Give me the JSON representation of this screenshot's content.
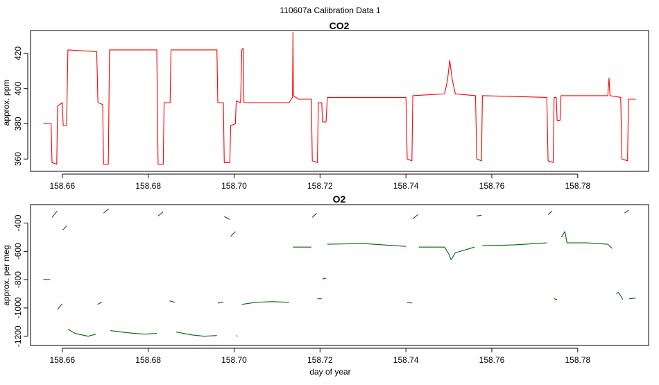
{
  "figure": {
    "title": "110607a   Calibration Data 1"
  },
  "chart_data": [
    {
      "type": "line",
      "title": "CO2",
      "ylabel": "approx. ppm",
      "xlabel": "",
      "xlim": [
        158.6526,
        158.7965
      ],
      "ylim": [
        353,
        433
      ],
      "xticks": [
        158.66,
        158.68,
        158.7,
        158.72,
        158.74,
        158.76,
        158.78
      ],
      "xtick_labels": [
        "158.66",
        "158.68",
        "158.70",
        "158.72",
        "158.74",
        "158.76",
        "158.78"
      ],
      "yticks": [
        360,
        380,
        400,
        420
      ],
      "ytick_labels": [
        "360",
        "380",
        "400",
        "420"
      ],
      "grid": false,
      "series": [
        {
          "color": "#ff0000",
          "segments": [
            [
              [
                158.6556,
                380
              ],
              [
                158.6574,
                380
              ],
              [
                158.6576,
                358
              ],
              [
                158.6587,
                357
              ],
              [
                158.6589,
                390
              ],
              [
                158.66,
                392
              ],
              [
                158.6602,
                379
              ],
              [
                158.661,
                379
              ],
              [
                158.6613,
                422
              ],
              [
                158.668,
                421
              ],
              [
                158.6683,
                392
              ],
              [
                158.6694,
                391
              ],
              [
                158.6696,
                357
              ],
              [
                158.6707,
                357
              ],
              [
                158.671,
                422
              ],
              [
                158.682,
                422
              ],
              [
                158.6823,
                357
              ],
              [
                158.6835,
                357
              ],
              [
                158.6837,
                392
              ],
              [
                158.6851,
                392
              ],
              [
                158.6853,
                422
              ],
              [
                158.696,
                422
              ],
              [
                158.6962,
                392
              ],
              [
                158.6975,
                392
              ],
              [
                158.6977,
                358
              ],
              [
                158.699,
                358
              ],
              [
                158.6992,
                379
              ],
              [
                158.7003,
                380
              ],
              [
                158.7005,
                393
              ],
              [
                158.7015,
                392
              ],
              [
                158.7018,
                422
              ],
              [
                158.7021,
                423
              ],
              [
                158.7023,
                392
              ],
              [
                158.7128,
                392
              ],
              [
                158.7136,
                395
              ],
              [
                158.7137,
                432
              ],
              [
                158.7138,
                396
              ],
              [
                158.715,
                394
              ],
              [
                158.718,
                394
              ],
              [
                158.7182,
                359
              ],
              [
                158.7194,
                358
              ],
              [
                158.7196,
                392
              ],
              [
                158.7204,
                392
              ],
              [
                158.7206,
                381
              ],
              [
                158.7214,
                381
              ],
              [
                158.7217,
                395
              ],
              [
                158.74,
                395
              ],
              [
                158.7403,
                360
              ],
              [
                158.7414,
                359
              ],
              [
                158.7416,
                396
              ],
              [
                158.749,
                397
              ],
              [
                158.7497,
                405
              ],
              [
                158.7502,
                416
              ],
              [
                158.7508,
                405
              ],
              [
                158.7515,
                397
              ],
              [
                158.7562,
                396
              ],
              [
                158.7565,
                360
              ],
              [
                158.7576,
                359
              ],
              [
                158.7578,
                396
              ],
              [
                158.7728,
                395
              ],
              [
                158.7731,
                359
              ],
              [
                158.7743,
                358
              ],
              [
                158.7745,
                395
              ],
              [
                158.775,
                395
              ],
              [
                158.7752,
                382
              ],
              [
                158.7759,
                382
              ],
              [
                158.7761,
                396
              ],
              [
                158.787,
                396
              ],
              [
                158.7873,
                406
              ],
              [
                158.7875,
                396
              ],
              [
                158.79,
                395
              ],
              [
                158.7903,
                360
              ],
              [
                158.7916,
                359
              ],
              [
                158.7918,
                394
              ],
              [
                158.7935,
                394
              ]
            ]
          ]
        }
      ]
    },
    {
      "type": "line",
      "title": "O2",
      "ylabel": "approx. per meg",
      "xlabel": "day of year",
      "xlim": [
        158.6526,
        158.7965
      ],
      "ylim": [
        -1265,
        -270
      ],
      "xticks": [
        158.66,
        158.68,
        158.7,
        158.72,
        158.74,
        158.76,
        158.78
      ],
      "xtick_labels": [
        "158.66",
        "158.68",
        "158.70",
        "158.72",
        "158.74",
        "158.76",
        "158.78"
      ],
      "yticks": [
        -1200,
        -1000,
        -800,
        -600,
        -400
      ],
      "ytick_labels": [
        "-1200",
        "-1000",
        "-800",
        "-600",
        "-400"
      ],
      "grid": false,
      "series": [
        {
          "color": "#006400",
          "segments": [
            [
              [
                158.6556,
                -798
              ],
              [
                158.6572,
                -800
              ]
            ],
            [
              [
                158.6576,
                -360
              ],
              [
                158.6588,
                -315
              ]
            ],
            [
              [
                158.6589,
                -1010
              ],
              [
                158.66,
                -970
              ]
            ],
            [
              [
                158.6601,
                -450
              ],
              [
                158.661,
                -420
              ]
            ],
            [
              [
                158.6613,
                -1150
              ],
              [
                158.663,
                -1180
              ],
              [
                158.666,
                -1200
              ],
              [
                158.6678,
                -1185
              ]
            ],
            [
              [
                158.6682,
                -975
              ],
              [
                158.6692,
                -960
              ]
            ],
            [
              [
                158.6696,
                -330
              ],
              [
                158.6708,
                -300
              ]
            ],
            [
              [
                158.6712,
                -1160
              ],
              [
                158.675,
                -1175
              ],
              [
                158.679,
                -1185
              ],
              [
                158.682,
                -1180
              ]
            ],
            [
              [
                158.6823,
                -350
              ],
              [
                158.6835,
                -320
              ]
            ],
            [
              [
                158.685,
                -950
              ],
              [
                158.6862,
                -960
              ]
            ],
            [
              [
                158.6865,
                -1170
              ],
              [
                158.69,
                -1190
              ],
              [
                158.693,
                -1200
              ],
              [
                158.696,
                -1195
              ]
            ],
            [
              [
                158.6962,
                -965
              ],
              [
                158.6975,
                -960
              ]
            ],
            [
              [
                158.6977,
                -355
              ],
              [
                158.699,
                -375
              ]
            ],
            [
              [
                158.6992,
                -495
              ],
              [
                158.7003,
                -460
              ]
            ],
            [
              [
                158.7005,
                -1195
              ],
              [
                158.7008,
                -1200
              ]
            ],
            [
              [
                158.7018,
                -975
              ],
              [
                158.705,
                -960
              ],
              [
                158.709,
                -955
              ],
              [
                158.7128,
                -960
              ]
            ],
            [
              [
                158.7137,
                -570
              ],
              [
                158.718,
                -570
              ]
            ],
            [
              [
                158.7182,
                -360
              ],
              [
                158.7192,
                -330
              ]
            ],
            [
              [
                158.7194,
                -935
              ],
              [
                158.7204,
                -935
              ]
            ],
            [
              [
                158.7206,
                -795
              ],
              [
                158.7214,
                -790
              ]
            ],
            [
              [
                158.7217,
                -550
              ],
              [
                158.73,
                -545
              ],
              [
                158.74,
                -565
              ]
            ],
            [
              [
                158.7403,
                -960
              ],
              [
                158.7414,
                -965
              ]
            ],
            [
              [
                158.7416,
                -370
              ],
              [
                158.7428,
                -340
              ]
            ],
            [
              [
                158.743,
                -570
              ],
              [
                158.749,
                -570
              ],
              [
                158.75,
                -620
              ],
              [
                158.7505,
                -660
              ],
              [
                158.7515,
                -610
              ],
              [
                158.756,
                -570
              ]
            ],
            [
              [
                158.7565,
                -350
              ],
              [
                158.7576,
                -345
              ]
            ],
            [
              [
                158.7578,
                -560
              ],
              [
                158.765,
                -555
              ],
              [
                158.7728,
                -540
              ]
            ],
            [
              [
                158.7731,
                -340
              ],
              [
                158.774,
                -315
              ]
            ],
            [
              [
                158.7745,
                -935
              ],
              [
                158.7752,
                -940
              ]
            ],
            [
              [
                158.7762,
                -500
              ],
              [
                158.777,
                -460
              ],
              [
                158.7775,
                -540
              ],
              [
                158.782,
                -540
              ],
              [
                158.787,
                -550
              ],
              [
                158.788,
                -580
              ]
            ],
            [
              [
                158.789,
                -900
              ],
              [
                158.7895,
                -890
              ],
              [
                158.7905,
                -940
              ]
            ],
            [
              [
                158.7909,
                -330
              ],
              [
                158.7918,
                -310
              ]
            ],
            [
              [
                158.792,
                -935
              ],
              [
                158.7935,
                -930
              ]
            ]
          ]
        }
      ]
    }
  ]
}
